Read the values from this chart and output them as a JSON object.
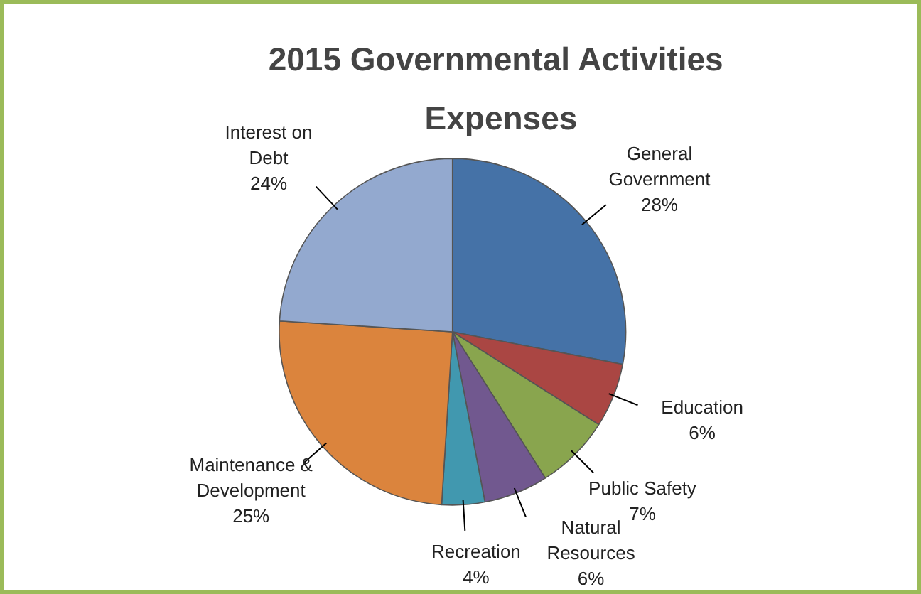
{
  "chart_data": {
    "type": "pie",
    "title": "2015 Governmental  Activities Expenses",
    "categories": [
      "General Government",
      "Education",
      "Public Safety",
      "Natural Resources",
      "Recreation",
      "Maintenance & Development",
      "Interest on Debt"
    ],
    "values": [
      28,
      6,
      7,
      6,
      4,
      25,
      24
    ],
    "colors": [
      "#4572a7",
      "#aa4643",
      "#89a54e",
      "#71588f",
      "#4198af",
      "#db843d",
      "#93a9cf"
    ],
    "value_labels": [
      "28%",
      "6%",
      "7%",
      "6%",
      "4%",
      "25%",
      "24%"
    ]
  }
}
